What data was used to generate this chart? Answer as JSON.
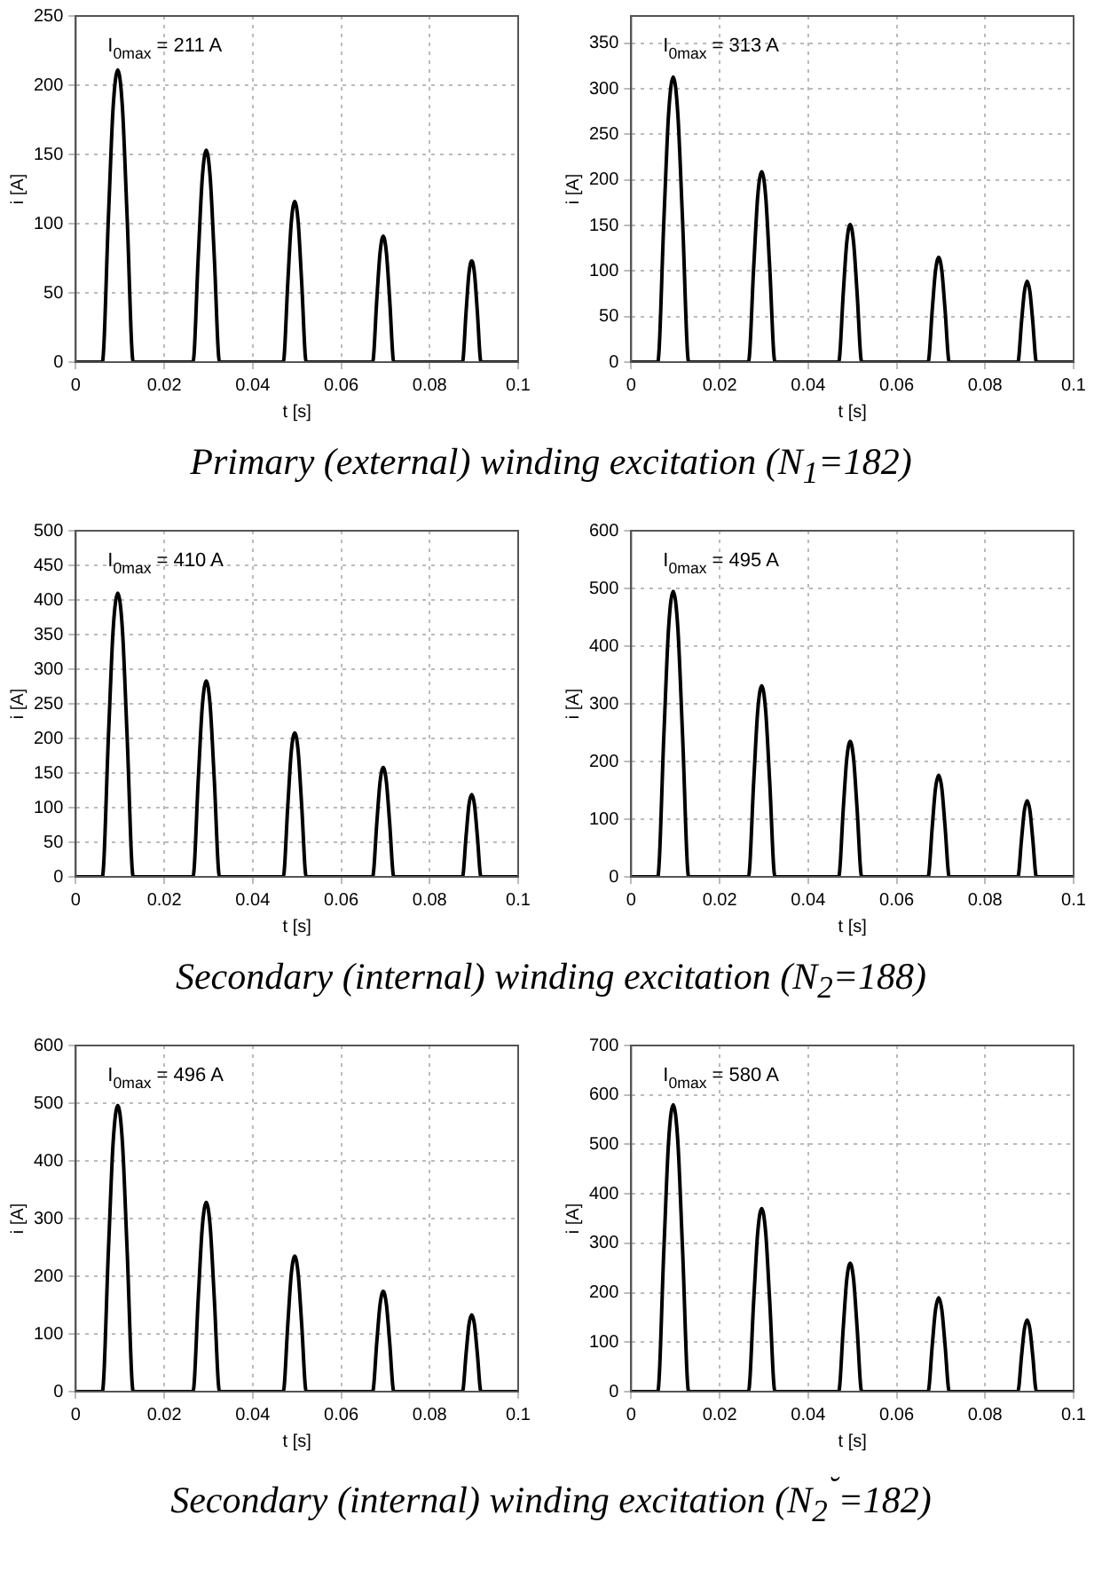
{
  "chart_data": [
    {
      "type": "line",
      "x": [
        0,
        0.006,
        0.0074,
        0.00845,
        0.0095,
        0.01055,
        0.0116,
        0.013,
        0.0265,
        0.0277,
        0.0286,
        0.0295,
        0.0304,
        0.0313,
        0.0325,
        0.0469,
        0.04794,
        0.04872,
        0.0495,
        0.05028,
        0.05106,
        0.0521,
        0.0671,
        0.06806,
        0.06878,
        0.0695,
        0.07022,
        0.07094,
        0.0719,
        0.0874,
        0.08824,
        0.08887,
        0.0895,
        0.09013,
        0.09076,
        0.0916,
        0.1
      ],
      "values": [
        0,
        0,
        106,
        184,
        211,
        184,
        106,
        0,
        0,
        77,
        133,
        153,
        133,
        77,
        0,
        0,
        58,
        101,
        116,
        101,
        58,
        0,
        0,
        46,
        79,
        91,
        79,
        46,
        0,
        0,
        37,
        64,
        73,
        64,
        37,
        0,
        0
      ],
      "color": "#000000",
      "line_style": "solid",
      "grid": true,
      "xlabel": "t [s]",
      "ylabel": "i [A]",
      "xlim": [
        0,
        0.1
      ],
      "xticks": [
        0,
        0.02,
        0.04,
        0.06,
        0.08,
        0.1
      ],
      "ylim": [
        0,
        250
      ],
      "yticks": [
        0,
        50,
        100,
        150,
        200,
        250
      ],
      "annotations": [
        "I$_{0max}$ = 211 A",
        "Primary (external) winding excitation (N$_{1}$=182)"
      ]
    },
    {
      "type": "line",
      "x": [
        0,
        0.006,
        0.0074,
        0.00845,
        0.0095,
        0.01055,
        0.0116,
        0.013,
        0.0265,
        0.0277,
        0.0286,
        0.0295,
        0.0304,
        0.0313,
        0.0325,
        0.0469,
        0.04794,
        0.04872,
        0.0495,
        0.05028,
        0.05106,
        0.0521,
        0.0671,
        0.06806,
        0.06878,
        0.0695,
        0.07022,
        0.07094,
        0.0719,
        0.0874,
        0.08824,
        0.08887,
        0.0895,
        0.09013,
        0.09076,
        0.0916,
        0.1
      ],
      "values": [
        0,
        0,
        157,
        272,
        313,
        272,
        157,
        0,
        0,
        105,
        182,
        209,
        182,
        105,
        0,
        0,
        76,
        131,
        151,
        131,
        76,
        0,
        0,
        58,
        100,
        115,
        100,
        58,
        0,
        0,
        45,
        77,
        89,
        77,
        45,
        0,
        0
      ],
      "color": "#000000",
      "line_style": "solid",
      "grid": true,
      "xlabel": "t [s]",
      "ylabel": "i [A]",
      "xlim": [
        0,
        0.1
      ],
      "xticks": [
        0,
        0.02,
        0.04,
        0.06,
        0.08,
        0.1
      ],
      "ylim": [
        0,
        380
      ],
      "yticks": [
        0,
        50,
        100,
        150,
        200,
        250,
        300,
        350
      ],
      "annotations": [
        "I$_{0max}$ = 313 A"
      ]
    },
    {
      "type": "line",
      "x": [
        0,
        0.006,
        0.0074,
        0.00845,
        0.0095,
        0.01055,
        0.0116,
        0.013,
        0.0265,
        0.0277,
        0.0286,
        0.0295,
        0.0304,
        0.0313,
        0.0325,
        0.0469,
        0.04794,
        0.04872,
        0.0495,
        0.05028,
        0.05106,
        0.0521,
        0.0671,
        0.06806,
        0.06878,
        0.0695,
        0.07022,
        0.07094,
        0.0719,
        0.0874,
        0.08824,
        0.08887,
        0.0895,
        0.09013,
        0.09076,
        0.0916,
        0.1
      ],
      "values": [
        0,
        0,
        205,
        357,
        410,
        357,
        205,
        0,
        0,
        142,
        246,
        283,
        246,
        142,
        0,
        0,
        104,
        181,
        208,
        181,
        104,
        0,
        0,
        79,
        137,
        158,
        137,
        79,
        0,
        0,
        60,
        104,
        119,
        104,
        60,
        0,
        0
      ],
      "color": "#000000",
      "line_style": "solid",
      "grid": true,
      "xlabel": "t [s]",
      "ylabel": "i [A]",
      "xlim": [
        0,
        0.1
      ],
      "xticks": [
        0,
        0.02,
        0.04,
        0.06,
        0.08,
        0.1
      ],
      "ylim": [
        0,
        500
      ],
      "yticks": [
        0,
        50,
        100,
        150,
        200,
        250,
        300,
        350,
        400,
        450,
        500
      ],
      "annotations": [
        "I$_{0max}$ = 410 A",
        "Secondary (internal) winding excitation (N$_{2}$=188)"
      ]
    },
    {
      "type": "line",
      "x": [
        0,
        0.006,
        0.0074,
        0.00845,
        0.0095,
        0.01055,
        0.0116,
        0.013,
        0.0265,
        0.0277,
        0.0286,
        0.0295,
        0.0304,
        0.0313,
        0.0325,
        0.0469,
        0.04794,
        0.04872,
        0.0495,
        0.05028,
        0.05106,
        0.0521,
        0.0671,
        0.06806,
        0.06878,
        0.0695,
        0.07022,
        0.07094,
        0.0719,
        0.0874,
        0.08824,
        0.08887,
        0.0895,
        0.09013,
        0.09076,
        0.0916,
        0.1
      ],
      "values": [
        0,
        0,
        248,
        431,
        495,
        431,
        248,
        0,
        0,
        166,
        288,
        331,
        288,
        166,
        0,
        0,
        118,
        204,
        235,
        204,
        118,
        0,
        0,
        88,
        153,
        176,
        153,
        88,
        0,
        0,
        66,
        115,
        132,
        115,
        66,
        0,
        0
      ],
      "color": "#000000",
      "line_style": "solid",
      "grid": true,
      "xlabel": "t [s]",
      "ylabel": "i [A]",
      "xlim": [
        0,
        0.1
      ],
      "xticks": [
        0,
        0.02,
        0.04,
        0.06,
        0.08,
        0.1
      ],
      "ylim": [
        0,
        600
      ],
      "yticks": [
        0,
        100,
        200,
        300,
        400,
        500,
        600
      ],
      "annotations": [
        "I$_{0max}$ = 495 A"
      ]
    },
    {
      "type": "line",
      "x": [
        0,
        0.006,
        0.0074,
        0.00845,
        0.0095,
        0.01055,
        0.0116,
        0.013,
        0.0265,
        0.0277,
        0.0286,
        0.0295,
        0.0304,
        0.0313,
        0.0325,
        0.0469,
        0.04794,
        0.04872,
        0.0495,
        0.05028,
        0.05106,
        0.0521,
        0.0671,
        0.06806,
        0.06878,
        0.0695,
        0.07022,
        0.07094,
        0.0719,
        0.0874,
        0.08824,
        0.08887,
        0.0895,
        0.09013,
        0.09076,
        0.0916,
        0.1
      ],
      "values": [
        0,
        0,
        248,
        432,
        496,
        432,
        248,
        0,
        0,
        164,
        285,
        328,
        285,
        164,
        0,
        0,
        118,
        204,
        235,
        204,
        118,
        0,
        0,
        87,
        151,
        174,
        151,
        87,
        0,
        0,
        67,
        116,
        133,
        116,
        67,
        0,
        0
      ],
      "color": "#000000",
      "line_style": "solid",
      "grid": true,
      "xlabel": "t [s]",
      "ylabel": "i [A]",
      "xlim": [
        0,
        0.1
      ],
      "xticks": [
        0,
        0.02,
        0.04,
        0.06,
        0.08,
        0.1
      ],
      "ylim": [
        0,
        600
      ],
      "yticks": [
        0,
        100,
        200,
        300,
        400,
        500,
        600
      ],
      "annotations": [
        "I$_{0max}$ = 496 A",
        "Secondary (internal) winding excitation (N$_{2}$$^{˘}$=182)"
      ]
    },
    {
      "type": "line",
      "x": [
        0,
        0.006,
        0.0074,
        0.00845,
        0.0095,
        0.01055,
        0.0116,
        0.013,
        0.0265,
        0.0277,
        0.0286,
        0.0295,
        0.0304,
        0.0313,
        0.0325,
        0.0469,
        0.04794,
        0.04872,
        0.0495,
        0.05028,
        0.05106,
        0.0521,
        0.0671,
        0.06806,
        0.06878,
        0.0695,
        0.07022,
        0.07094,
        0.0719,
        0.0874,
        0.08824,
        0.08887,
        0.0895,
        0.09013,
        0.09076,
        0.0916,
        0.1
      ],
      "values": [
        0,
        0,
        290,
        505,
        580,
        505,
        290,
        0,
        0,
        185,
        322,
        370,
        322,
        185,
        0,
        0,
        130,
        226,
        260,
        226,
        130,
        0,
        0,
        95,
        165,
        190,
        165,
        95,
        0,
        0,
        73,
        126,
        145,
        126,
        73,
        0,
        0
      ],
      "color": "#000000",
      "line_style": "solid",
      "grid": true,
      "xlabel": "t [s]",
      "ylabel": "i [A]",
      "xlim": [
        0,
        0.1
      ],
      "xticks": [
        0,
        0.02,
        0.04,
        0.06,
        0.08,
        0.1
      ],
      "ylim": [
        0,
        700
      ],
      "yticks": [
        0,
        100,
        200,
        300,
        400,
        500,
        600,
        700
      ],
      "annotations": [
        "I$_{0max}$ = 580 A"
      ]
    }
  ]
}
